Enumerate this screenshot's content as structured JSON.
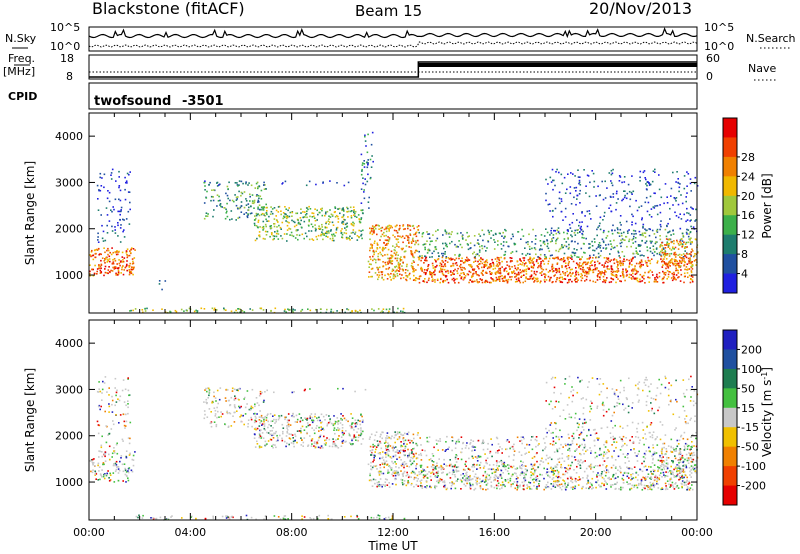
{
  "header": {
    "station": "Blackstone (fitACF)",
    "beam": "Beam 15",
    "date": "20/Nov/2013"
  },
  "noise_panel": {
    "left_label": "N.Sky",
    "right_label": "N.Search",
    "ticks_left": [
      "10^5",
      "10^0"
    ],
    "ticks_right": [
      "10^5",
      "10^0"
    ]
  },
  "freq_panel": {
    "left_label_1": "Freq.",
    "left_label_2": "[MHz]",
    "right_label": "Nave",
    "ticks_left": [
      "18",
      "8"
    ],
    "ticks_right": [
      "60",
      "0"
    ],
    "freq_step_time": "13:00"
  },
  "cpid_panel": {
    "label": "CPID",
    "program": "twofsound",
    "cpid": "-3501"
  },
  "chart_data": [
    {
      "type": "heatmap",
      "title": "Power",
      "xlabel": "Time UT",
      "ylabel": "Slant Range [km]",
      "xlim": [
        "00:00",
        "24:00"
      ],
      "ylim": [
        180,
        4500
      ],
      "x_ticks": [
        "00:00",
        "04:00",
        "08:00",
        "12:00",
        "16:00",
        "20:00",
        "00:00"
      ],
      "y_ticks": [
        1000,
        2000,
        3000,
        4000
      ],
      "colorbar": {
        "label": "Power [dB]",
        "ticks": [
          4,
          8,
          12,
          16,
          20,
          24,
          28
        ],
        "range": [
          0,
          32
        ],
        "colors": [
          "#2020e0",
          "#2050a0",
          "#1e7d6e",
          "#3cb04a",
          "#a0c83c",
          "#f0b800",
          "#f08000",
          "#f04000",
          "#e60000"
        ]
      },
      "scatter_regions": [
        {
          "t0": 0.0,
          "t1": 1.8,
          "r0": 1000,
          "r1": 1600,
          "level": 0.8
        },
        {
          "t0": 0.3,
          "t1": 1.6,
          "r0": 1700,
          "r1": 3300,
          "level": 0.2
        },
        {
          "t0": 2.7,
          "t1": 3.0,
          "r0": 700,
          "r1": 900,
          "level": 0.35
        },
        {
          "t0": 4.5,
          "t1": 7.0,
          "r0": 2200,
          "r1": 3050,
          "level": 0.35
        },
        {
          "t0": 6.5,
          "t1": 10.8,
          "r0": 1750,
          "r1": 2500,
          "level": 0.55
        },
        {
          "t0": 10.7,
          "t1": 11.2,
          "r0": 2400,
          "r1": 4100,
          "level": 0.25
        },
        {
          "t0": 11.0,
          "t1": 13.0,
          "r0": 900,
          "r1": 2100,
          "level": 0.7
        },
        {
          "t0": 13.0,
          "t1": 23.8,
          "r0": 850,
          "r1": 1400,
          "level": 0.85
        },
        {
          "t0": 13.0,
          "t1": 23.8,
          "r0": 1400,
          "r1": 2000,
          "level": 0.35
        },
        {
          "t0": 18.0,
          "t1": 24.0,
          "r0": 1900,
          "r1": 3300,
          "level": 0.18
        },
        {
          "t0": 22.5,
          "t1": 24.0,
          "r0": 1200,
          "r1": 1800,
          "level": 0.7
        },
        {
          "t0": 4.5,
          "t1": 11.0,
          "r0": 2950,
          "r1": 3050,
          "level": 0.15
        },
        {
          "t0": 1.5,
          "t1": 12.5,
          "r0": 200,
          "r1": 300,
          "level": 0.5
        }
      ]
    },
    {
      "type": "heatmap",
      "title": "Velocity",
      "xlabel": "Time UT",
      "ylabel": "Slant Range [km]",
      "xlim": [
        "00:00",
        "24:00"
      ],
      "ylim": [
        180,
        4500
      ],
      "x_ticks": [
        "00:00",
        "04:00",
        "08:00",
        "12:00",
        "16:00",
        "20:00",
        "00:00"
      ],
      "y_ticks": [
        1000,
        2000,
        3000,
        4000
      ],
      "colorbar": {
        "label": "Velocity [m s^-1]",
        "ticks": [
          200,
          100,
          50,
          15,
          -15,
          -50,
          -100,
          -200
        ],
        "colors": [
          "#2020c0",
          "#2050a0",
          "#1e7d50",
          "#44c040",
          "#c8c8c8",
          "#f0c000",
          "#f08000",
          "#f04000",
          "#e60000"
        ]
      },
      "scatter_regions": [
        {
          "t0": 0.0,
          "t1": 1.8,
          "r0": 1000,
          "r1": 1700,
          "level": 0.45
        },
        {
          "t0": 0.3,
          "t1": 1.6,
          "r0": 1700,
          "r1": 3300,
          "level": 0.2
        },
        {
          "t0": 4.5,
          "t1": 7.0,
          "r0": 2200,
          "r1": 3050,
          "level": 0.3
        },
        {
          "t0": 6.5,
          "t1": 10.8,
          "r0": 1750,
          "r1": 2500,
          "level": 0.55
        },
        {
          "t0": 11.0,
          "t1": 13.0,
          "r0": 900,
          "r1": 2100,
          "level": 0.65
        },
        {
          "t0": 13.0,
          "t1": 23.8,
          "r0": 850,
          "r1": 1400,
          "level": 0.7
        },
        {
          "t0": 13.0,
          "t1": 23.8,
          "r0": 1400,
          "r1": 2000,
          "level": 0.3
        },
        {
          "t0": 18.0,
          "t1": 24.0,
          "r0": 1900,
          "r1": 3300,
          "level": 0.15
        },
        {
          "t0": 22.5,
          "t1": 24.0,
          "r0": 1200,
          "r1": 1800,
          "level": 0.6
        },
        {
          "t0": 4.5,
          "t1": 11.0,
          "r0": 2950,
          "r1": 3050,
          "level": 0.15
        },
        {
          "t0": 1.5,
          "t1": 12.5,
          "r0": 200,
          "r1": 300,
          "level": 0.4
        }
      ]
    }
  ]
}
